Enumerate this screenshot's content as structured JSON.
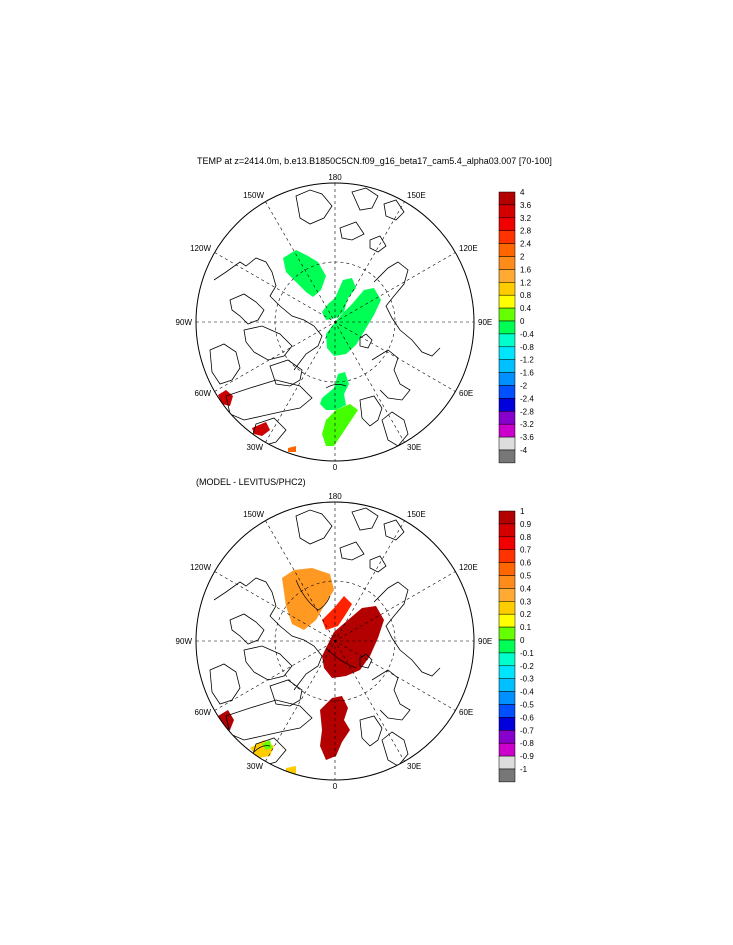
{
  "top_panel": {
    "title": "TEMP at z=2414.0m, b.e13.B1850C5CN.f09_g16_beta17_cam5.4_alpha03.007 [70-100]",
    "lon_labels": {
      "top": "180",
      "bottom": "0",
      "left": "90W",
      "right": "90E",
      "nw1": "150W",
      "nw2": "120W",
      "sw1": "60W",
      "sw2": "30W",
      "ne1": "150E",
      "ne2": "120E",
      "se1": "60E",
      "se2": "30E"
    },
    "colorbar": {
      "labels": [
        "4",
        "3.6",
        "3.2",
        "2.8",
        "2.4",
        "2",
        "1.6",
        "1.2",
        "0.8",
        "0.4",
        "0",
        "-0.4",
        "-0.8",
        "-1.2",
        "-1.6",
        "-2",
        "-2.4",
        "-2.8",
        "-3.2",
        "-3.6",
        "-4"
      ],
      "colors": [
        "#b30000",
        "#d40000",
        "#f00000",
        "#ff3300",
        "#ff6600",
        "#ff8c1a",
        "#ffaa33",
        "#ffcc00",
        "#ffff00",
        "#66ff00",
        "#00ff55",
        "#00ffcc",
        "#00e5ff",
        "#00c0ff",
        "#0090ff",
        "#0050ff",
        "#0000dd",
        "#8800cc",
        "#cc00cc",
        "#dddddd",
        "#777777"
      ]
    },
    "fill_colors": {
      "field": "#00ff55",
      "field_south": "#44ff00",
      "hot": "#cc0000"
    }
  },
  "bottom_panel": {
    "title": "(MODEL - LEVITUS/PHC2)",
    "lon_labels": {
      "top": "180",
      "bottom": "0",
      "left": "90W",
      "right": "90E",
      "nw1": "150W",
      "nw2": "120W",
      "sw1": "60W",
      "sw2": "30W",
      "ne1": "150E",
      "ne2": "120E",
      "se1": "60E",
      "se2": "30E"
    },
    "colorbar": {
      "labels": [
        "1",
        "0.9",
        "0.8",
        "0.7",
        "0.6",
        "0.5",
        "0.4",
        "0.3",
        "0.2",
        "0.1",
        "0",
        "-0.1",
        "-0.2",
        "-0.3",
        "-0.4",
        "-0.5",
        "-0.6",
        "-0.7",
        "-0.8",
        "-0.9",
        "-1"
      ],
      "colors": [
        "#b30000",
        "#d40000",
        "#f00000",
        "#ff3300",
        "#ff6600",
        "#ff8c1a",
        "#ffaa33",
        "#ffcc00",
        "#ffff00",
        "#66ff00",
        "#00ff55",
        "#00ffcc",
        "#00e5ff",
        "#00c0ff",
        "#0090ff",
        "#0050ff",
        "#0000dd",
        "#8800cc",
        "#cc00cc",
        "#dddddd",
        "#777777"
      ]
    },
    "fill_colors": {
      "canada_basin": "#ff9922",
      "eurasian": "#b30000",
      "ridge": "#ff2200"
    }
  }
}
